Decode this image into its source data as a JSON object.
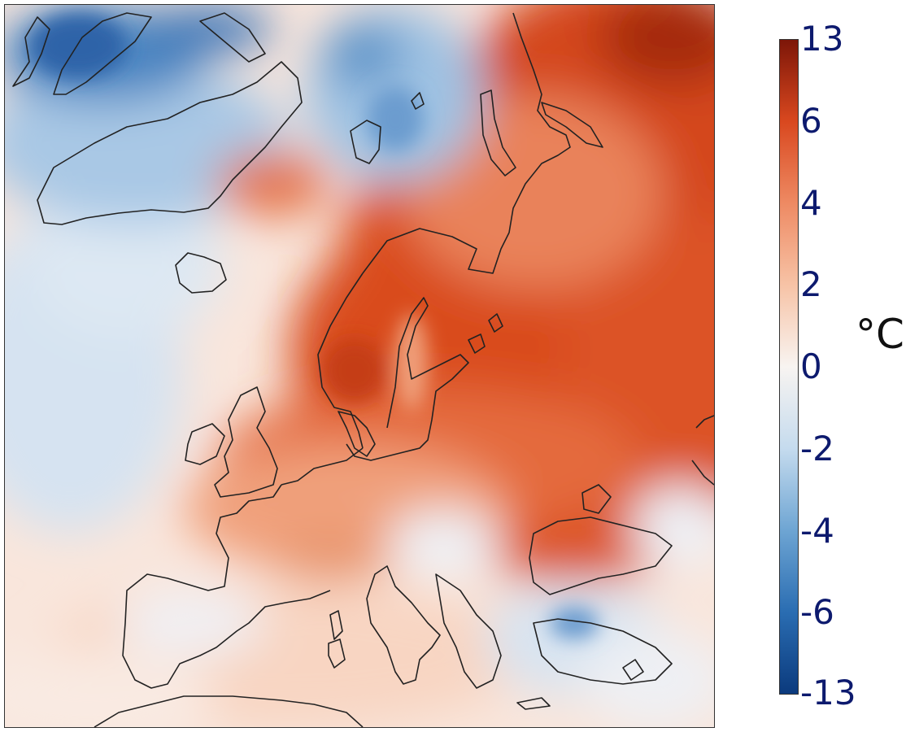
{
  "colorbar": {
    "unit": "°C",
    "ticks": [
      "13",
      "6",
      "4",
      "2",
      "0",
      "-2",
      "-4",
      "-6",
      "-13"
    ],
    "colors": [
      "#0b3a7d",
      "#2a6db2",
      "#6ea5d3",
      "#c5dbee",
      "#f8f4f1",
      "#f7c3a6",
      "#ee8a63",
      "#d9481f",
      "#7d1608"
    ]
  },
  "map": {
    "description_colors": {
      "warm_strong": "#d9481f",
      "warm_mid": "#f09a74",
      "warm_light": "#fbd9c8",
      "neutral": "#faf3ef",
      "cool_light": "#dbe7f3",
      "cool_mid": "#8db8de",
      "cool_strong": "#2f6cb0",
      "coastline": "#222222"
    }
  }
}
